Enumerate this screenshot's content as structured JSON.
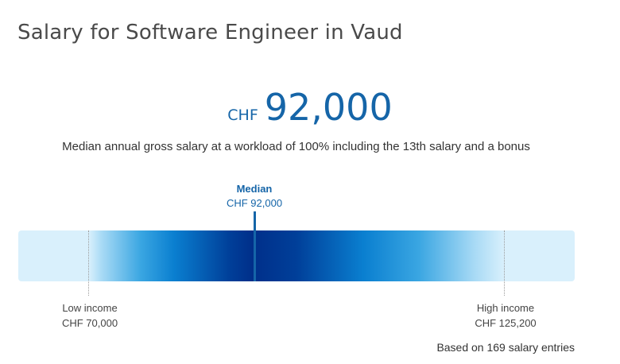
{
  "title": "Salary for Software Engineer in Vaud",
  "median": {
    "currency": "CHF",
    "value": "92,000",
    "description": "Median annual gross salary at a workload of 100% including the 13th salary and a bonus"
  },
  "bar": {
    "median_label": "Median",
    "median_amount": "CHF 92,000",
    "low_label": "Low income",
    "low_amount": "CHF 70,000",
    "high_label": "High income",
    "high_amount": "CHF 125,200"
  },
  "footer": {
    "based_on": "Based on 169 salary entries"
  },
  "colors": {
    "accent": "#1565a8",
    "bar_light": "#d9f0fc",
    "bar_dark": "#002f8a"
  }
}
